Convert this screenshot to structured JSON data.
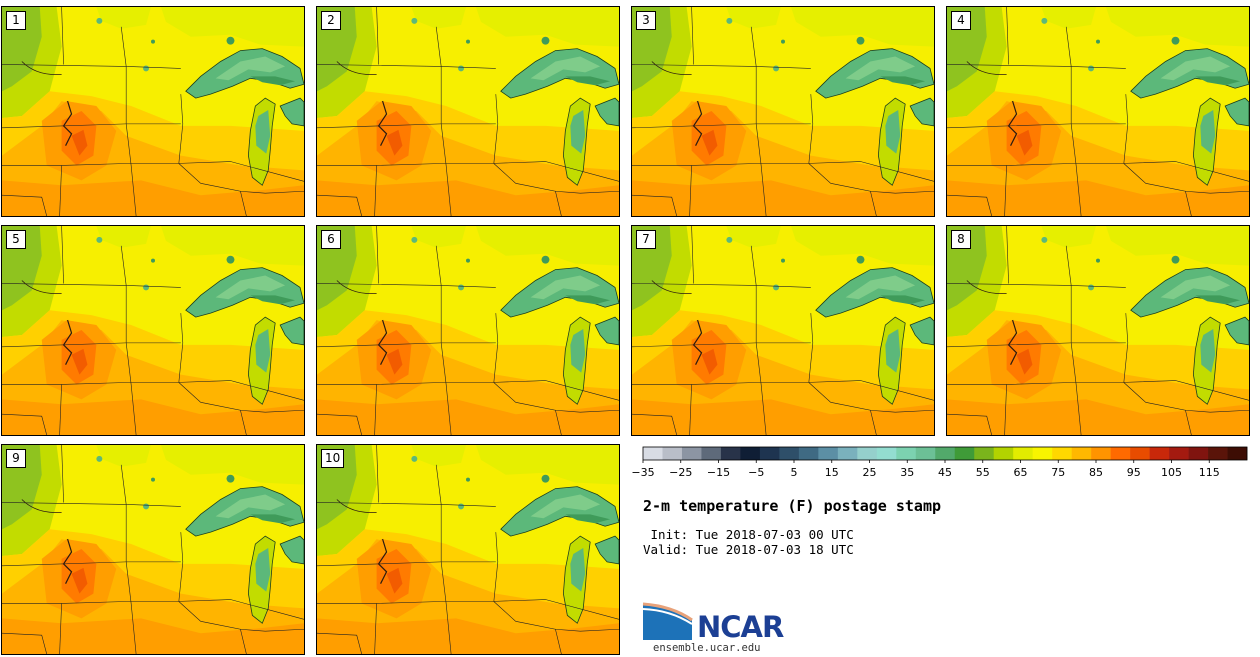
{
  "panels": [
    "1",
    "2",
    "3",
    "4",
    "5",
    "6",
    "7",
    "8",
    "9",
    "10"
  ],
  "title": "2-m temperature (F) postage stamp",
  "init": " Init: Tue 2018-07-03 00 UTC",
  "valid": "Valid: Tue 2018-07-03 18 UTC",
  "logo": {
    "name": "NCAR",
    "site": "ensemble.ucar.edu"
  },
  "colorbar": {
    "min": -35,
    "max": 120,
    "step": 5,
    "tick_labels": [
      "−35",
      "−25",
      "−15",
      "−5",
      "5",
      "15",
      "25",
      "35",
      "45",
      "55",
      "65",
      "75",
      "85",
      "95",
      "105",
      "115"
    ],
    "tick_values": [
      -35,
      -25,
      -15,
      -5,
      5,
      15,
      25,
      35,
      45,
      55,
      65,
      75,
      85,
      95,
      105,
      115
    ],
    "colors": [
      "#d8dce4",
      "#b9bec8",
      "#8c95a3",
      "#5e6a7a",
      "#283349",
      "#0f1e35",
      "#1e3450",
      "#2e4f69",
      "#3f6a83",
      "#5c8fa5",
      "#7ab1bd",
      "#95d0cc",
      "#93ddd0",
      "#7cd2b0",
      "#6cc096",
      "#52a96b",
      "#3f9b38",
      "#7ab41c",
      "#b2d300",
      "#e2ec00",
      "#f8f400",
      "#ffd800",
      "#ffb800",
      "#ff9400",
      "#ff6a00",
      "#e84c00",
      "#c8280a",
      "#a41a10",
      "#80140f",
      "#5a1409",
      "#3d0d04"
    ]
  },
  "field_colors": {
    "cool_green": "#8fc31f",
    "light_green": "#c2dc00",
    "yellow_green": "#e6ef00",
    "yellow": "#f7ef00",
    "gold": "#ffd000",
    "orange_light": "#ffb400",
    "orange": "#ff9e00",
    "orange_dark": "#ff7b00",
    "red_orange": "#f25c00",
    "lake_dark": "#3f9b5a",
    "lake_mid": "#5cb87a",
    "lake_light": "#7fcc8a"
  }
}
